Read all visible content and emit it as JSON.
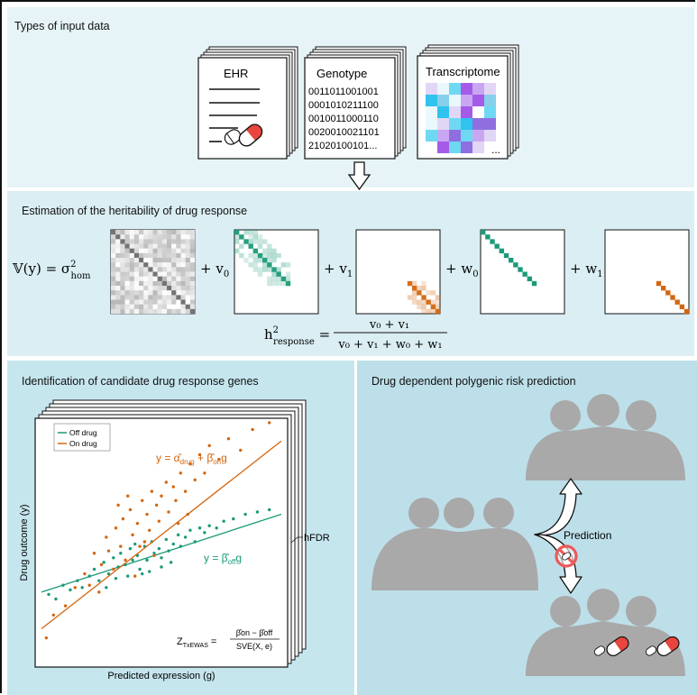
{
  "panels": {
    "input_title": "Types of input data",
    "heritability_title": "Estimation of the heritability of drug response",
    "genes_title": "Identification of candidate drug response genes",
    "risk_title": "Drug dependent polygenic risk prediction"
  },
  "documents": {
    "ehr_label": "EHR",
    "genotype_label": "Genotype",
    "genotype_rows": [
      "0011011001001",
      "0001010211100",
      "0010011000110",
      "0020010021101",
      "21020100101..."
    ],
    "transcriptome_label": "Transcriptome",
    "transcriptome_ellipsis": "..."
  },
  "equation": {
    "lhs": "𝕍(y) = σ",
    "lhs_sup": "2",
    "lhs_sub": "hom",
    "terms": [
      "+ v",
      "+ v",
      "+ w",
      "+ w"
    ],
    "term_subs": [
      "0",
      "1",
      "0",
      "1"
    ],
    "h2": "h",
    "h2_sup": "2",
    "h2_sub": "response",
    "numerator": "v₀ + v₁",
    "denominator": "v₀ + v₁ + w₀ + w₁"
  },
  "scatter": {
    "xlabel": "Predicted expression (g)",
    "ylabel": "Drug outcome (y)",
    "legend": [
      "Off drug",
      "On drug"
    ],
    "eq_on": "y = α̂",
    "eq_on_sub": "drug",
    "eq_on_mid": " + β̂",
    "eq_on_sub2": "on",
    "eq_on_end": "g",
    "eq_off": "y = β̂",
    "eq_off_sub": "off",
    "eq_off_end": "g",
    "z_label": "Z",
    "z_sub": "TxEWAS",
    "z_eq": " = ",
    "z_num": "β̂on − β̂off",
    "z_den": "SVE(X, e)",
    "hfdr": "hFDR",
    "colors": {
      "off": "#1a9a78",
      "on": "#d3660f"
    }
  },
  "chart_data": {
    "type": "scatter",
    "xlabel": "Predicted expression (g)",
    "ylabel": "Drug outcome (y)",
    "legend_position": "top-left",
    "series": [
      {
        "name": "Off drug",
        "color": "#1a9a78",
        "fit": [
          [
            0.0,
            0.28
          ],
          [
            1.0,
            0.62
          ]
        ],
        "points": [
          [
            0.03,
            0.27
          ],
          [
            0.06,
            0.25
          ],
          [
            0.09,
            0.31
          ],
          [
            0.12,
            0.29
          ],
          [
            0.15,
            0.33
          ],
          [
            0.17,
            0.3
          ],
          [
            0.2,
            0.35
          ],
          [
            0.22,
            0.38
          ],
          [
            0.24,
            0.33
          ],
          [
            0.26,
            0.41
          ],
          [
            0.28,
            0.36
          ],
          [
            0.3,
            0.43
          ],
          [
            0.32,
            0.39
          ],
          [
            0.33,
            0.45
          ],
          [
            0.35,
            0.4
          ],
          [
            0.37,
            0.47
          ],
          [
            0.38,
            0.42
          ],
          [
            0.4,
            0.44
          ],
          [
            0.41,
            0.38
          ],
          [
            0.43,
            0.48
          ],
          [
            0.44,
            0.42
          ],
          [
            0.46,
            0.5
          ],
          [
            0.47,
            0.45
          ],
          [
            0.49,
            0.47
          ],
          [
            0.5,
            0.43
          ],
          [
            0.52,
            0.51
          ],
          [
            0.53,
            0.46
          ],
          [
            0.55,
            0.49
          ],
          [
            0.57,
            0.53
          ],
          [
            0.58,
            0.48
          ],
          [
            0.6,
            0.52
          ],
          [
            0.62,
            0.55
          ],
          [
            0.64,
            0.5
          ],
          [
            0.66,
            0.56
          ],
          [
            0.68,
            0.54
          ],
          [
            0.7,
            0.57
          ],
          [
            0.73,
            0.56
          ],
          [
            0.76,
            0.59
          ],
          [
            0.8,
            0.6
          ],
          [
            0.85,
            0.62
          ],
          [
            0.9,
            0.63
          ],
          [
            0.95,
            0.64
          ],
          [
            0.36,
            0.35
          ],
          [
            0.42,
            0.36
          ],
          [
            0.45,
            0.37
          ],
          [
            0.5,
            0.39
          ],
          [
            0.54,
            0.41
          ],
          [
            0.31,
            0.34
          ],
          [
            0.27,
            0.3
          ],
          [
            0.39,
            0.49
          ]
        ]
      },
      {
        "name": "On drug",
        "color": "#d3660f",
        "fit": [
          [
            0.0,
            0.12
          ],
          [
            1.0,
            0.94
          ]
        ],
        "points": [
          [
            0.02,
            0.08
          ],
          [
            0.05,
            0.18
          ],
          [
            0.1,
            0.22
          ],
          [
            0.14,
            0.3
          ],
          [
            0.18,
            0.36
          ],
          [
            0.2,
            0.31
          ],
          [
            0.22,
            0.45
          ],
          [
            0.25,
            0.4
          ],
          [
            0.27,
            0.52
          ],
          [
            0.28,
            0.46
          ],
          [
            0.3,
            0.38
          ],
          [
            0.31,
            0.56
          ],
          [
            0.33,
            0.48
          ],
          [
            0.34,
            0.6
          ],
          [
            0.35,
            0.42
          ],
          [
            0.37,
            0.64
          ],
          [
            0.38,
            0.53
          ],
          [
            0.4,
            0.58
          ],
          [
            0.41,
            0.48
          ],
          [
            0.42,
            0.68
          ],
          [
            0.44,
            0.62
          ],
          [
            0.45,
            0.55
          ],
          [
            0.46,
            0.72
          ],
          [
            0.48,
            0.66
          ],
          [
            0.49,
            0.59
          ],
          [
            0.5,
            0.7
          ],
          [
            0.52,
            0.76
          ],
          [
            0.53,
            0.63
          ],
          [
            0.55,
            0.74
          ],
          [
            0.56,
            0.68
          ],
          [
            0.58,
            0.8
          ],
          [
            0.6,
            0.72
          ],
          [
            0.62,
            0.84
          ],
          [
            0.64,
            0.77
          ],
          [
            0.66,
            0.88
          ],
          [
            0.68,
            0.8
          ],
          [
            0.7,
            0.92
          ],
          [
            0.74,
            0.86
          ],
          [
            0.78,
            0.95
          ],
          [
            0.83,
            0.9
          ],
          [
            0.88,
            0.99
          ],
          [
            0.95,
            1.02
          ],
          [
            0.36,
            0.7
          ],
          [
            0.32,
            0.66
          ],
          [
            0.43,
            0.5
          ],
          [
            0.47,
            0.44
          ],
          [
            0.24,
            0.28
          ],
          [
            0.39,
            0.35
          ],
          [
            0.57,
            0.58
          ],
          [
            0.61,
            0.62
          ]
        ]
      }
    ]
  },
  "risk": {
    "prediction_label": "Prediction"
  }
}
